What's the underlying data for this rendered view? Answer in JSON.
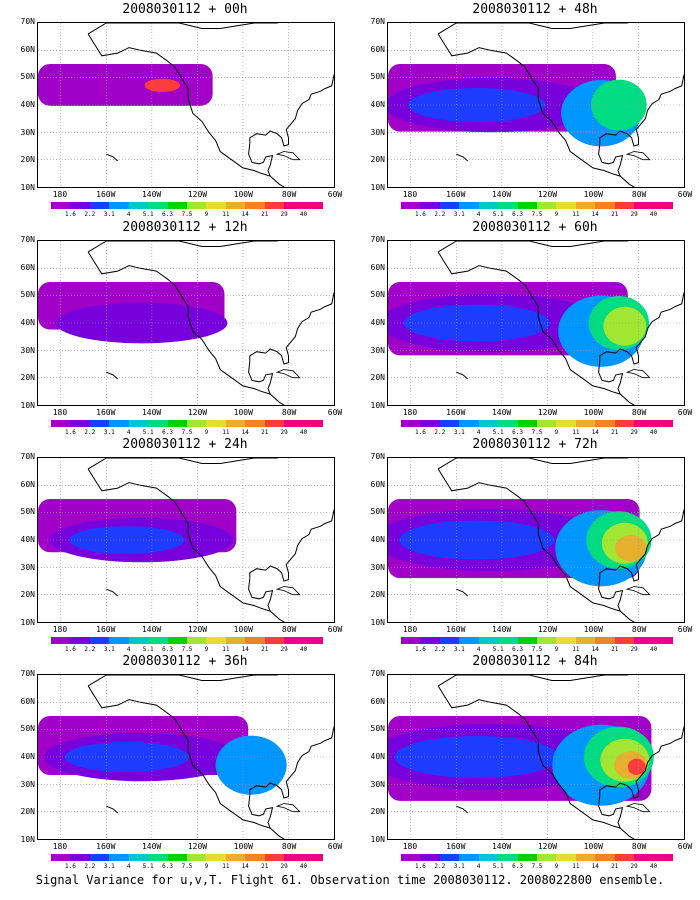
{
  "caption": "Signal Variance for u,v,T. Flight 61. Observation time 2008030112. 2008022800 ensemble.",
  "lat_labels": [
    "70N",
    "60N",
    "50N",
    "40N",
    "30N",
    "20N",
    "10N"
  ],
  "lon_labels": [
    "180",
    "160W",
    "140W",
    "120W",
    "100W",
    "80W",
    "60W"
  ],
  "colorbar": {
    "levels": [
      "1.6",
      "2.2",
      "3.1",
      "4",
      "5.1",
      "6.3",
      "7.5",
      "9",
      "11",
      "14",
      "21",
      "29",
      "40"
    ],
    "colors": [
      "#a000c8",
      "#7800dc",
      "#1e3cff",
      "#0096ff",
      "#00c8c8",
      "#00dc82",
      "#00d200",
      "#a0e632",
      "#e6dc32",
      "#e6af2d",
      "#f08228",
      "#fa3c3c",
      "#f00082"
    ]
  },
  "panels": [
    {
      "id": "p00",
      "title": "2008030112 + 00h",
      "level": 0.1
    },
    {
      "id": "p12",
      "title": "2008030112 + 12h",
      "level": 0.2
    },
    {
      "id": "p24",
      "title": "2008030112 + 24h",
      "level": 0.3
    },
    {
      "id": "p36",
      "title": "2008030112 + 36h",
      "level": 0.4
    },
    {
      "id": "p48",
      "title": "2008030112 + 48h",
      "level": 0.55
    },
    {
      "id": "p60",
      "title": "2008030112 + 60h",
      "level": 0.65
    },
    {
      "id": "p72",
      "title": "2008030112 + 72h",
      "level": 0.75
    },
    {
      "id": "p84",
      "title": "2008030112 + 84h",
      "level": 0.85
    }
  ]
}
